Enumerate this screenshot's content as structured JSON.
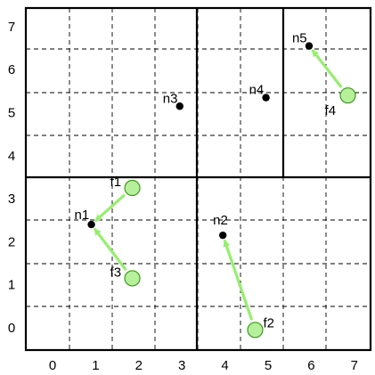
{
  "grid": {
    "x_ticks": [
      "0",
      "1",
      "2",
      "3",
      "4",
      "5",
      "6",
      "7"
    ],
    "y_ticks": [
      "0",
      "1",
      "2",
      "3",
      "4",
      "5",
      "6",
      "7"
    ]
  },
  "nodes": [
    {
      "id": "n1",
      "label": "n1",
      "x": 0.9,
      "y": 2.4
    },
    {
      "id": "n2",
      "label": "n2",
      "x": 3.95,
      "y": 2.15
    },
    {
      "id": "n3",
      "label": "n3",
      "x": 2.95,
      "y": 5.15
    },
    {
      "id": "n4",
      "label": "n4",
      "x": 4.95,
      "y": 5.35
    },
    {
      "id": "n5",
      "label": "n5",
      "x": 5.95,
      "y": 6.55
    }
  ],
  "flows": [
    {
      "id": "f1",
      "label": "f1",
      "x": 1.85,
      "y": 3.25,
      "target": "n1"
    },
    {
      "id": "f2",
      "label": "f2",
      "x": 4.7,
      "y": -0.05,
      "target": "n2"
    },
    {
      "id": "f3",
      "label": "f3",
      "x": 1.85,
      "y": 1.15,
      "target": "n1"
    },
    {
      "id": "f4",
      "label": "f4",
      "x": 6.85,
      "y": 5.4,
      "target": "n5"
    }
  ],
  "colors": {
    "flow_fill": "#b6f09a",
    "flow_stroke": "#3f9a1f",
    "arrow": "#96ee6e",
    "node": "#000000",
    "grid_dash": "#000000",
    "partition": "#000000"
  }
}
